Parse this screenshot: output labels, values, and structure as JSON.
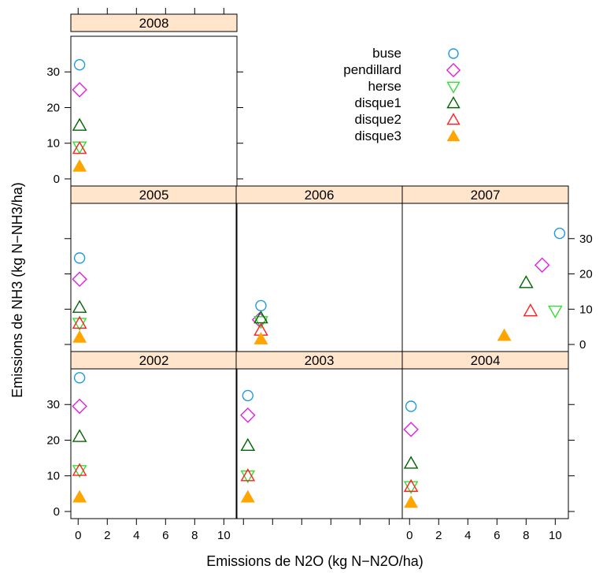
{
  "chart_data": {
    "type": "scatter",
    "xlabel": "Emissions de N2O (kg N−N2O/ha)",
    "ylabel": "Emissions de NH3 (kg N−NH3/ha)",
    "xlim": [
      -0.5,
      10.9
    ],
    "ylim": [
      -2,
      40
    ],
    "x_ticks": [
      0,
      2,
      4,
      6,
      8,
      10
    ],
    "y_ticks": [
      0,
      10,
      20,
      30
    ],
    "grid": false,
    "legend_position": "top-right",
    "series": [
      {
        "name": "buse",
        "symbol": "circle",
        "color": "#1f9ae0"
      },
      {
        "name": "pendillard",
        "symbol": "diamond",
        "color": "#e020e0"
      },
      {
        "name": "herse",
        "symbol": "triangle-down",
        "color": "#33dd33"
      },
      {
        "name": "disque1",
        "symbol": "triangle-up",
        "color": "#006400"
      },
      {
        "name": "disque2",
        "symbol": "triangle-up",
        "color": "#ff2020"
      },
      {
        "name": "disque3",
        "symbol": "triangle-up-filled",
        "color": "#ffa500"
      }
    ],
    "panels": [
      {
        "title": "2008",
        "points": {
          "buse": [
            0.1,
            32
          ],
          "pendillard": [
            0.1,
            25
          ],
          "herse": [
            0.1,
            9
          ],
          "disque1": [
            0.1,
            15
          ],
          "disque2": [
            0.1,
            8.5
          ],
          "disque3": [
            0.1,
            3.5
          ]
        }
      },
      {
        "title": "2005",
        "points": {
          "buse": [
            0.1,
            24.5
          ],
          "pendillard": [
            0.1,
            18.5
          ],
          "herse": [
            0.1,
            6
          ],
          "disque1": [
            0.1,
            10.5
          ],
          "disque2": [
            0.1,
            6
          ],
          "disque3": [
            0.1,
            2
          ]
        }
      },
      {
        "title": "2006",
        "points": {
          "buse": [
            1.2,
            11
          ],
          "pendillard": [
            1.1,
            7
          ],
          "herse": [
            1.2,
            6.5
          ],
          "disque1": [
            1.2,
            7.5
          ],
          "disque2": [
            1.2,
            4
          ],
          "disque3": [
            1.2,
            1.5
          ]
        }
      },
      {
        "title": "2007",
        "points": {
          "buse": [
            10.3,
            31.5
          ],
          "pendillard": [
            9.1,
            22.5
          ],
          "herse": [
            10.0,
            9.5
          ],
          "disque1": [
            8.0,
            17.5
          ],
          "disque2": [
            8.3,
            9.5
          ],
          "disque3": [
            6.5,
            2.5
          ]
        }
      },
      {
        "title": "2002",
        "points": {
          "buse": [
            0.1,
            37.5
          ],
          "pendillard": [
            0.1,
            29.5
          ],
          "herse": [
            0.1,
            11.5
          ],
          "disque1": [
            0.1,
            21
          ],
          "disque2": [
            0.1,
            11.5
          ],
          "disque3": [
            0.1,
            4
          ]
        }
      },
      {
        "title": "2003",
        "points": {
          "buse": [
            0.3,
            32.5
          ],
          "pendillard": [
            0.3,
            27
          ],
          "herse": [
            0.3,
            10
          ],
          "disque1": [
            0.3,
            18.5
          ],
          "disque2": [
            0.3,
            10
          ],
          "disque3": [
            0.3,
            4
          ]
        }
      },
      {
        "title": "2004",
        "points": {
          "buse": [
            0.1,
            29.5
          ],
          "pendillard": [
            0.1,
            23
          ],
          "herse": [
            0.1,
            7
          ],
          "disque1": [
            0.1,
            13.5
          ],
          "disque2": [
            0.1,
            7
          ],
          "disque3": [
            0.1,
            2.5
          ]
        }
      }
    ]
  }
}
